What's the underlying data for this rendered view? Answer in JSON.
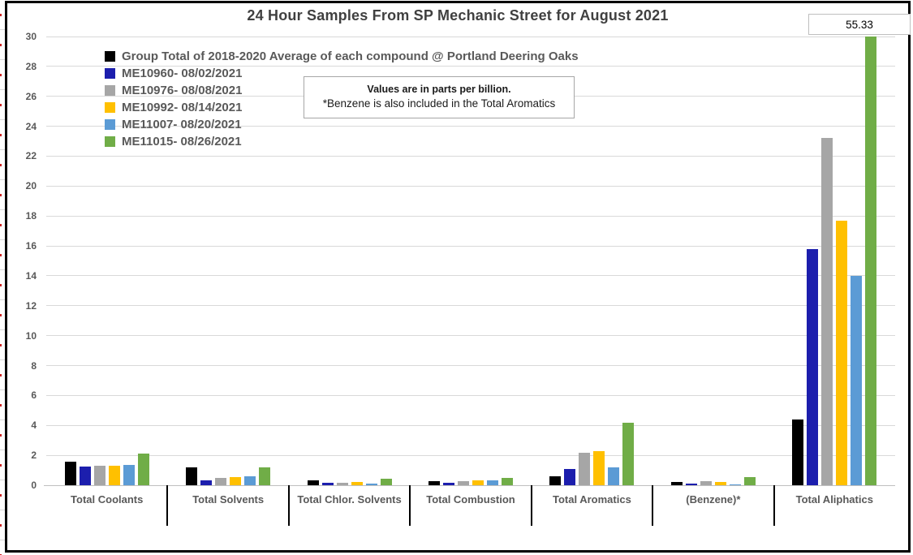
{
  "chart_data": {
    "type": "bar",
    "title": "24 Hour Samples From SP Mechanic Street for August 2021",
    "note_line1": "Values are in parts per billion.",
    "note_line2": "*Benzene is also included in the Total Aromatics",
    "callout_label": "55.33",
    "categories": [
      "Total Coolants",
      "Total Solvents",
      "Total Chlor. Solvents",
      "Total Combustion",
      "Total Aromatics",
      "(Benzene)*",
      "Total Aliphatics"
    ],
    "series": [
      {
        "name": "Group Total of 2018-2020 Average of each compound @ Portland Deering Oaks",
        "color": "#000000",
        "values": [
          1.55,
          1.2,
          0.3,
          0.25,
          0.6,
          0.2,
          4.4
        ]
      },
      {
        "name": "ME10960- 08/02/2021",
        "color": "#1C1EAD",
        "values": [
          1.25,
          0.3,
          0.17,
          0.15,
          1.1,
          0.13,
          15.8
        ]
      },
      {
        "name": "ME10976- 08/08/2021",
        "color": "#A6A6A6",
        "values": [
          1.3,
          0.5,
          0.15,
          0.25,
          2.15,
          0.25,
          23.2
        ]
      },
      {
        "name": "ME10992- 08/14/2021",
        "color": "#FFC000",
        "values": [
          1.3,
          0.55,
          0.2,
          0.3,
          2.3,
          0.2,
          17.7
        ]
      },
      {
        "name": "ME11007- 08/20/2021",
        "color": "#5B9BD5",
        "values": [
          1.35,
          0.6,
          0.1,
          0.3,
          1.2,
          0.07,
          14.0
        ]
      },
      {
        "name": "ME11015- 08/26/2021",
        "color": "#70AD47",
        "values": [
          2.1,
          1.2,
          0.45,
          0.48,
          4.2,
          0.52,
          55.33
        ]
      }
    ],
    "ylabel": "",
    "xlabel": "",
    "y_axis": {
      "min": 0,
      "max": 30,
      "step": 2
    },
    "ylim": [
      0,
      30
    ],
    "grid": true,
    "legend_position": "top-left-inside",
    "notes": "Green bar for Total Aliphatics (55.33) is clipped at axis max 30 and labeled by the callout box"
  }
}
